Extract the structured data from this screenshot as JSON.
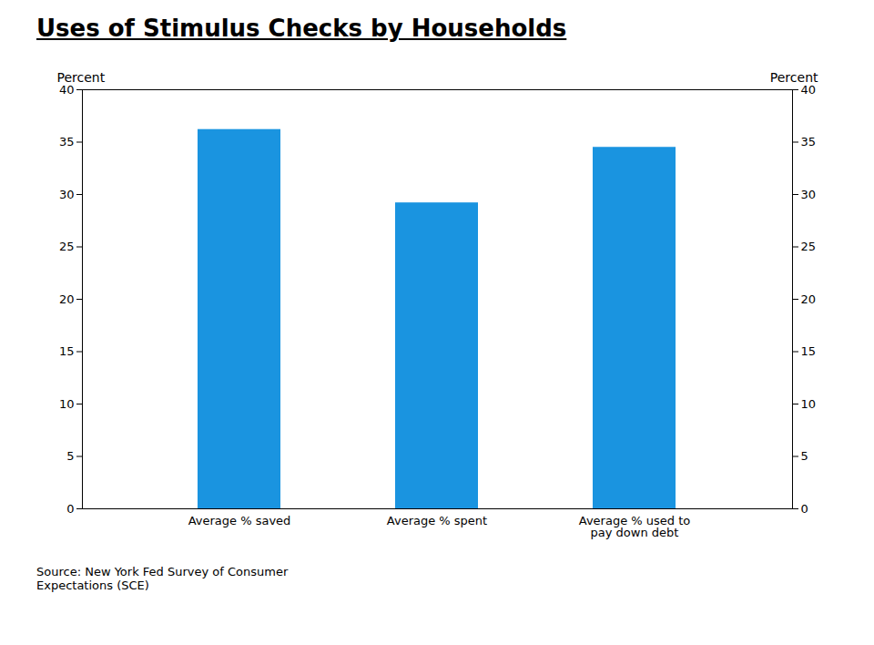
{
  "chart_data": {
    "type": "bar",
    "title": "Uses of Stimulus Checks by Households",
    "categories": [
      "Average % saved",
      "Average % spent",
      "Average % used to\npay down debt"
    ],
    "values": [
      36.2,
      29.2,
      34.5
    ],
    "color": "#1a94e0",
    "ylabel": "Percent",
    "y2label": "Percent",
    "ylim": [
      0,
      40
    ],
    "yticks": [
      0,
      5,
      10,
      15,
      20,
      25,
      30,
      35,
      40
    ],
    "y2lim": [
      0,
      40
    ],
    "y2ticks": [
      0,
      5,
      10,
      15,
      20,
      25,
      30,
      35,
      40
    ],
    "source": "Source: New York Fed Survey of Consumer\nExpectations (SCE)",
    "grid": false
  }
}
